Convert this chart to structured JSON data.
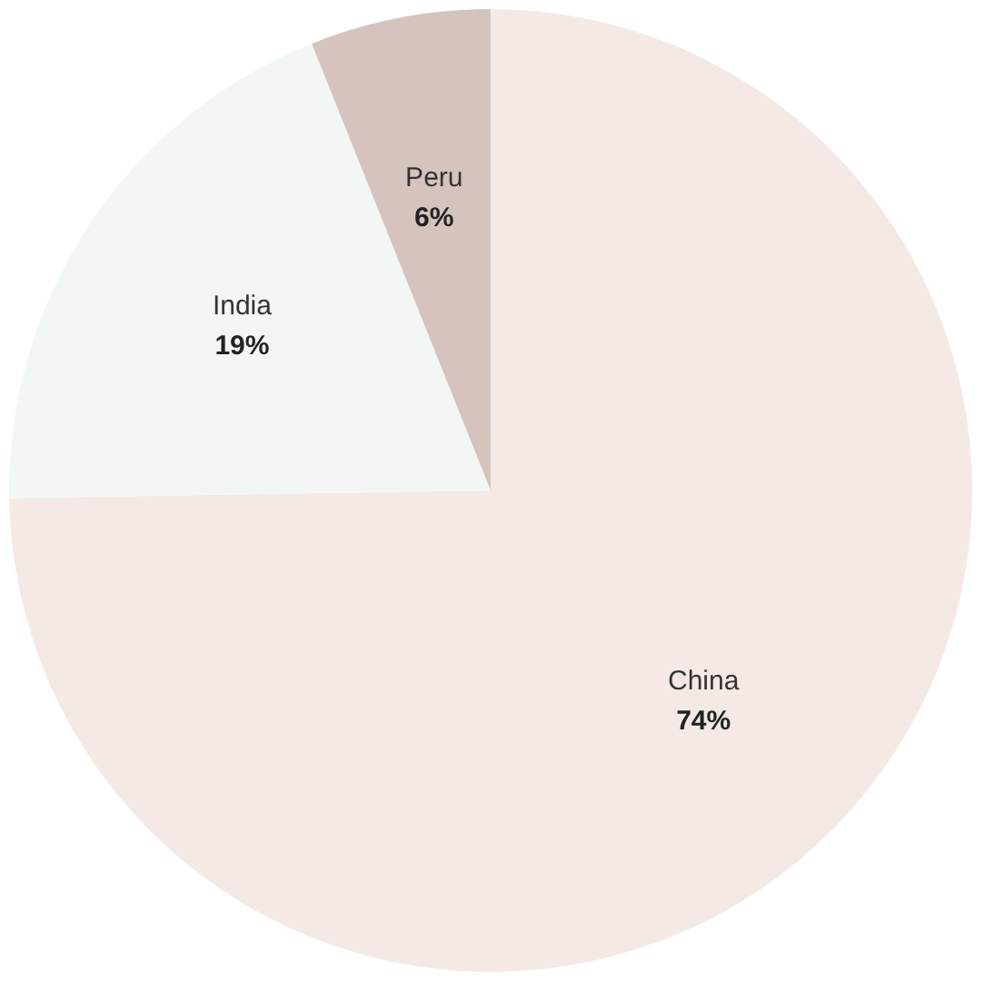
{
  "chart_data": {
    "type": "pie",
    "categories": [
      "China",
      "India",
      "Peru"
    ],
    "values": [
      74,
      19,
      6
    ],
    "value_labels": [
      "74%",
      "19%",
      "6%"
    ],
    "colors": [
      "#f5e9e6",
      "#f2f7f6",
      "#d5c4bd"
    ],
    "legend": false
  }
}
